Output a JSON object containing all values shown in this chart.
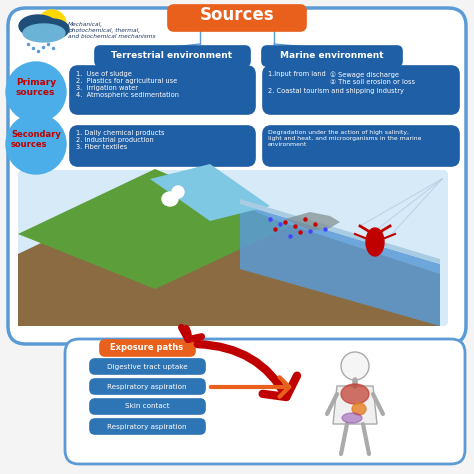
{
  "title": "Sources",
  "title_color": "#FFFFFF",
  "title_bg": "#E8601C",
  "outer_border_color": "#5B9BD5",
  "bg_color": "#F4F4F4",
  "terrestrial_label": "Terrestrial environment",
  "marine_label": "Marine environment",
  "header_bg": "#1F5FA6",
  "header_text_color": "#FFFFFF",
  "primary_label": "Primary\nsources",
  "secondary_label": "Secondary\nsources",
  "circle_color": "#4BAEE8",
  "circle_text_color": "#C00000",
  "mech_text": "Mechanical,\nphotochemical, thermal,\nand biochemical mechanisms",
  "primary_terrestrial": "1.  Use of sludge\n2.  Plastics for agricultural use\n3.  Irrigation water\n4.  Atmospheric sedimentation",
  "secondary_terrestrial": "1. Daily chemical products\n2. Industrial production\n3. Fiber textiles",
  "primary_marine_1": "1.Input from land",
  "primary_marine_2": "① Sewage discharge\n② The soil erosion or loss",
  "primary_marine_3": "2. Coastal tourism and shipping industry",
  "secondary_marine": "Degradation under the action of high salinity,\nlight and heat, and microorganisms in the marine\nenvironment",
  "box_blue_dark": "#1F5FA6",
  "box_blue_medium": "#2E75B6",
  "exposure_label": "Exposure paths",
  "exposure_bg": "#E8601C",
  "exposure_text_color": "#FFFFFF",
  "exposure_paths": [
    "Digestive tract uptake",
    "Respiratory aspiration",
    "Skin contact",
    "Respiratory aspiration"
  ],
  "exposure_box_bg": "#2E75B6",
  "exposure_box_text": "#FFFFFF",
  "arrow_red": "#C00000",
  "arrow_orange": "#E8601C",
  "lower_panel_border": "#5B9BD5",
  "lower_panel_bg": "#FFFFFF",
  "upper_panel_bg": "#FFFFFF"
}
